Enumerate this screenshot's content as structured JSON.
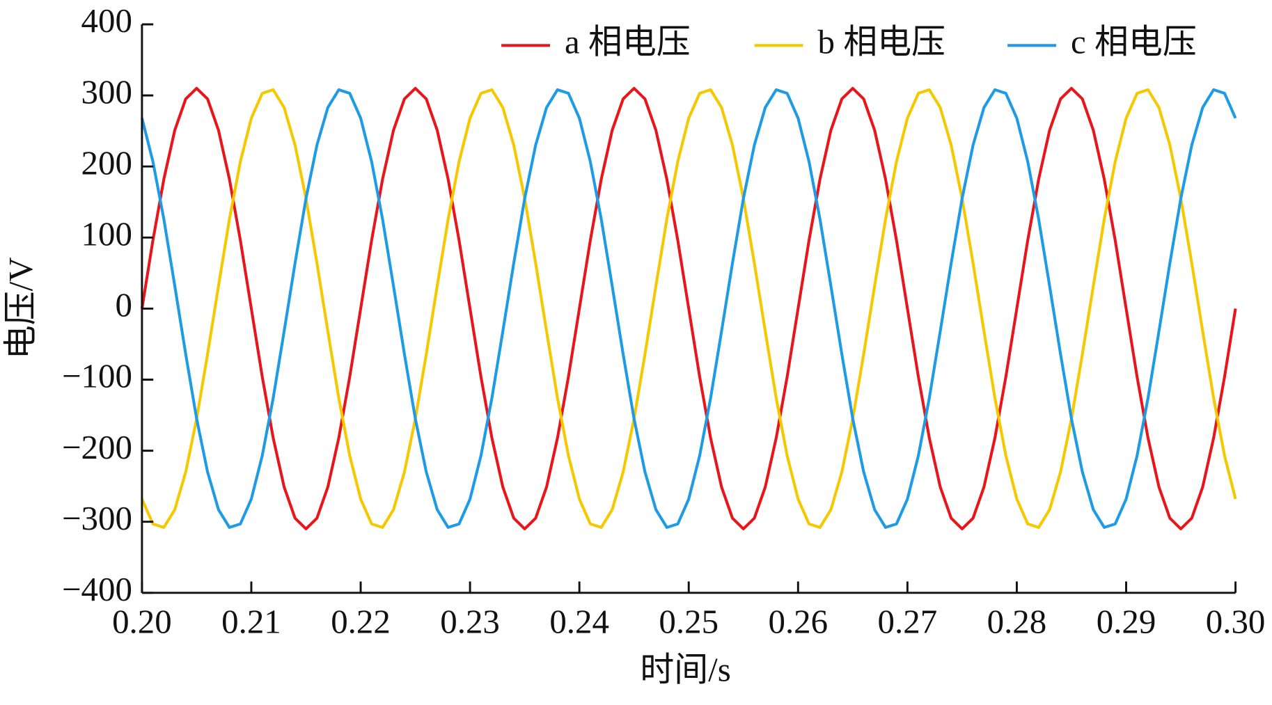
{
  "chart_data": {
    "type": "line",
    "xlabel": "时间/s",
    "ylabel": "电压/V",
    "x": [
      0.2,
      0.201,
      0.202,
      0.203,
      0.204,
      0.205,
      0.206,
      0.207,
      0.208,
      0.209,
      0.21,
      0.211,
      0.212,
      0.213,
      0.214,
      0.215,
      0.216,
      0.217,
      0.218,
      0.219,
      0.22,
      0.221,
      0.222,
      0.223,
      0.224,
      0.225,
      0.226,
      0.227,
      0.228,
      0.229,
      0.23,
      0.231,
      0.232,
      0.233,
      0.234,
      0.235,
      0.236,
      0.237,
      0.238,
      0.239,
      0.24,
      0.241,
      0.242,
      0.243,
      0.244,
      0.245,
      0.246,
      0.247,
      0.248,
      0.249,
      0.25,
      0.251,
      0.252,
      0.253,
      0.254,
      0.255,
      0.256,
      0.257,
      0.258,
      0.259,
      0.26,
      0.261,
      0.262,
      0.263,
      0.264,
      0.265,
      0.266,
      0.267,
      0.268,
      0.269,
      0.27,
      0.271,
      0.272,
      0.273,
      0.274,
      0.275,
      0.276,
      0.277,
      0.278,
      0.279,
      0.28,
      0.281,
      0.282,
      0.283,
      0.284,
      0.285,
      0.286,
      0.287,
      0.288,
      0.289,
      0.29,
      0.291,
      0.292,
      0.293,
      0.294,
      0.295,
      0.296,
      0.297,
      0.298,
      0.299,
      0.3
    ],
    "series": [
      {
        "name": "a 相电压",
        "color": "#e8161b",
        "values": [
          0,
          96,
          182,
          251,
          295,
          310,
          295,
          251,
          182,
          96,
          0,
          -96,
          -182,
          -251,
          -295,
          -310,
          -295,
          -251,
          -182,
          -96,
          0,
          96,
          182,
          251,
          295,
          310,
          295,
          251,
          182,
          96,
          0,
          -96,
          -182,
          -251,
          -295,
          -310,
          -295,
          -251,
          -182,
          -96,
          0,
          96,
          182,
          251,
          295,
          310,
          295,
          251,
          182,
          96,
          0,
          -96,
          -182,
          -251,
          -295,
          -310,
          -295,
          -251,
          -182,
          -96,
          0,
          96,
          182,
          251,
          295,
          310,
          295,
          251,
          182,
          96,
          0,
          -96,
          -182,
          -251,
          -295,
          -310,
          -295,
          -251,
          -182,
          -96,
          0,
          96,
          182,
          251,
          295,
          310,
          295,
          251,
          182,
          96,
          0,
          -96,
          -182,
          -251,
          -295,
          -310,
          -295,
          -251,
          -182,
          -96,
          0
        ]
      },
      {
        "name": "b 相电压",
        "color": "#f5c800",
        "values": [
          -268,
          -303,
          -308,
          -283,
          -230,
          -155,
          -64,
          32,
          126,
          207,
          268,
          303,
          308,
          283,
          230,
          155,
          64,
          -32,
          -126,
          -207,
          -268,
          -303,
          -308,
          -283,
          -230,
          -155,
          -64,
          32,
          126,
          207,
          268,
          303,
          308,
          283,
          230,
          155,
          64,
          -32,
          -126,
          -207,
          -268,
          -303,
          -308,
          -283,
          -230,
          -155,
          -64,
          32,
          126,
          207,
          268,
          303,
          308,
          283,
          230,
          155,
          64,
          -32,
          -126,
          -207,
          -268,
          -303,
          -308,
          -283,
          -230,
          -155,
          -64,
          32,
          126,
          207,
          268,
          303,
          308,
          283,
          230,
          155,
          64,
          -32,
          -126,
          -207,
          -268,
          -303,
          -308,
          -283,
          -230,
          -155,
          -64,
          32,
          126,
          207,
          268,
          303,
          308,
          283,
          230,
          155,
          64,
          -32,
          -126,
          -207,
          -268
        ]
      },
      {
        "name": "c 相电压",
        "color": "#1e9be6",
        "values": [
          268,
          207,
          126,
          32,
          -64,
          -155,
          -230,
          -283,
          -308,
          -303,
          -268,
          -207,
          -126,
          -32,
          64,
          155,
          230,
          283,
          308,
          303,
          268,
          207,
          126,
          32,
          -64,
          -155,
          -230,
          -283,
          -308,
          -303,
          -268,
          -207,
          -126,
          -32,
          64,
          155,
          230,
          283,
          308,
          303,
          268,
          207,
          126,
          32,
          -64,
          -155,
          -230,
          -283,
          -308,
          -303,
          -268,
          -207,
          -126,
          -32,
          64,
          155,
          230,
          283,
          308,
          303,
          268,
          207,
          126,
          32,
          -64,
          -155,
          -230,
          -283,
          -308,
          -303,
          -268,
          -207,
          -126,
          -32,
          64,
          155,
          230,
          283,
          308,
          303,
          268,
          207,
          126,
          32,
          -64,
          -155,
          -230,
          -283,
          -308,
          -303,
          -268,
          -207,
          -126,
          -32,
          64,
          155,
          230,
          283,
          308,
          303,
          268
        ]
      }
    ],
    "xlim": [
      0.2,
      0.3
    ],
    "xticks": [
      {
        "value": 0.2,
        "label": "0.20"
      },
      0.21,
      0.22,
      0.23,
      0.24,
      0.25,
      0.26,
      0.27,
      0.28,
      0.29,
      {
        "value": 0.3,
        "label": "0.30"
      }
    ],
    "ylim": [
      -400,
      400
    ],
    "yticks": [
      {
        "value": -400,
        "label": "−400"
      },
      {
        "value": -300,
        "label": "−300"
      },
      {
        "value": -200,
        "label": "−200"
      },
      {
        "value": -100,
        "label": "−100"
      },
      0,
      100,
      200,
      300,
      400
    ],
    "grid": false,
    "legend": "top-right"
  }
}
